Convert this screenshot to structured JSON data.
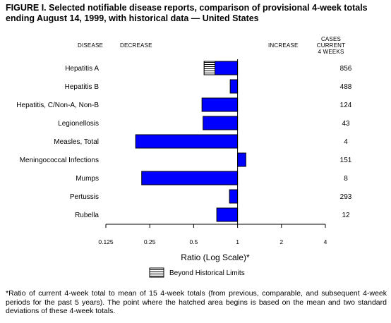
{
  "title": "FIGURE I. Selected notifiable disease reports, comparison of provisional 4-week totals ending August 14, 1999, with historical data — United States",
  "headers": {
    "disease": "DISEASE",
    "decrease": "DECREASE",
    "increase": "INCREASE",
    "cases_line1": "CASES CURRENT",
    "cases_line2": "4 WEEKS"
  },
  "footnote": "*Ratio of current 4-week total to mean of 15 4-week totals (from previous, comparable, and subsequent 4-week periods for the past 5 years). The point where the hatched area begins is based on the mean and two standard deviations of these 4-week totals.",
  "colors": {
    "bar": "#0000ff",
    "bar_stroke": "#000000",
    "hatch": "#000000"
  },
  "chart_data": {
    "type": "bar",
    "orientation": "horizontal",
    "scale": "log2",
    "xlim": [
      0.125,
      4
    ],
    "xticks": [
      0.125,
      0.25,
      0.5,
      1,
      2,
      4
    ],
    "xtick_labels": [
      "0.125",
      "0.25",
      "0.5",
      "1",
      "2",
      "4"
    ],
    "baseline": 1,
    "xlabel": "Ratio (Log Scale)*",
    "legend": {
      "label": "Beyond Historical Limits",
      "placement": "bottom-center"
    },
    "categories": [
      "Hepatitis A",
      "Hepatitis B",
      "Hepatitis, C/Non-A, Non-B",
      "Legionellosis",
      "Measles, Total",
      "Meningococcal Infections",
      "Mumps",
      "Pertussis",
      "Rubella"
    ],
    "values": [
      0.59,
      0.89,
      0.57,
      0.58,
      0.2,
      1.14,
      0.22,
      0.88,
      0.72
    ],
    "hatched_from": [
      0.7,
      null,
      null,
      null,
      null,
      null,
      null,
      null,
      null
    ],
    "cases": [
      "856",
      "488",
      "124",
      "43",
      "4",
      "151",
      "8",
      "293",
      "12"
    ]
  }
}
